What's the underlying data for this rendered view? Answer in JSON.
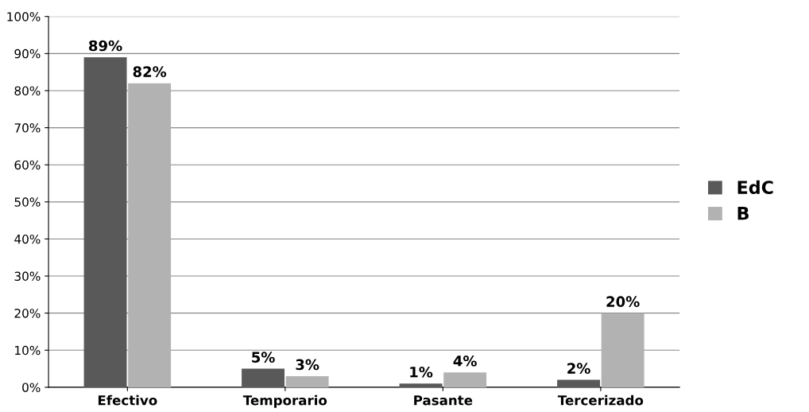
{
  "chart_data": {
    "type": "bar",
    "categories": [
      "Efectivo",
      "Temporario",
      "Pasante",
      "Tercerizado"
    ],
    "series": [
      {
        "name": "EdC",
        "color": "#595959",
        "values": [
          89,
          5,
          1,
          2
        ],
        "value_labels": [
          "89%",
          "5%",
          "1%",
          "2%"
        ]
      },
      {
        "name": "B",
        "color": "#b2b2b2",
        "values": [
          82,
          3,
          4,
          20
        ],
        "value_labels": [
          "82%",
          "3%",
          "4%",
          "20%"
        ]
      }
    ],
    "ylim": [
      0,
      100
    ],
    "yticks": [
      {
        "value": 0,
        "label": "0%"
      },
      {
        "value": 10,
        "label": "10%"
      },
      {
        "value": 20,
        "label": "20%"
      },
      {
        "value": 30,
        "label": "30%"
      },
      {
        "value": 40,
        "label": "40%"
      },
      {
        "value": 50,
        "label": "50%"
      },
      {
        "value": 60,
        "label": "60%"
      },
      {
        "value": 70,
        "label": "70%"
      },
      {
        "value": 80,
        "label": "80%"
      },
      {
        "value": 90,
        "label": "90%"
      },
      {
        "value": 100,
        "label": "100%"
      }
    ],
    "grid": "y",
    "legend": "right"
  }
}
